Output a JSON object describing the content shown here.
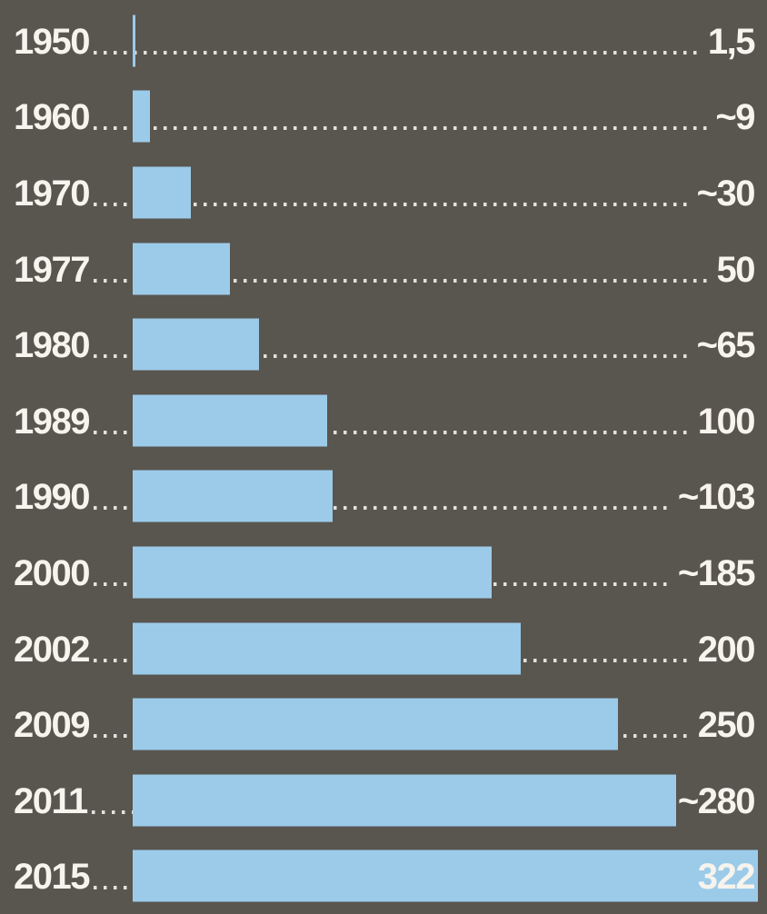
{
  "colors": {
    "background": "#59554f",
    "bar": "#9ccbe9",
    "text": "#f7f3ed",
    "dots": "#e4e1da"
  },
  "chart_data": {
    "type": "bar",
    "orientation": "horizontal",
    "title": "",
    "xlabel": "",
    "ylabel": "",
    "xmax": 322,
    "grid": false,
    "legend": false,
    "leader_style": "dotted",
    "categories": [
      "1950",
      "1960",
      "1970",
      "1977",
      "1980",
      "1989",
      "1990",
      "2000",
      "2002",
      "2009",
      "2011",
      "2015"
    ],
    "values": [
      1.5,
      9,
      30,
      50,
      65,
      100,
      103,
      185,
      200,
      250,
      280,
      322
    ],
    "value_labels": [
      "1,5",
      "~9",
      "~30",
      "50",
      "~65",
      "100",
      "~103",
      "~185",
      "200",
      "250",
      "~280",
      "322"
    ]
  }
}
